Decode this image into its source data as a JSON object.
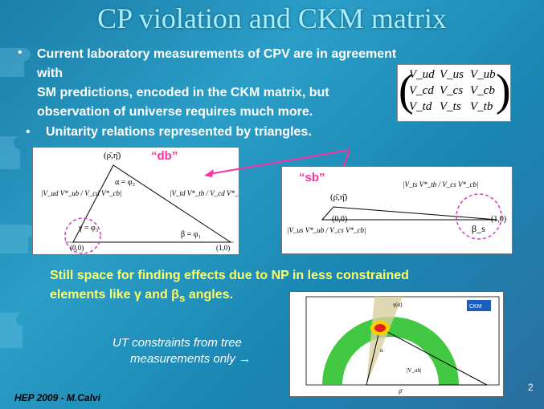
{
  "title": "CP violation and CKM matrix",
  "bullet1": {
    "line1": "Current  laboratory measurements of CPV are in agreement with",
    "line2": "SM predictions, encoded in the CKM matrix, but",
    "line3": "observation of universe requires much more."
  },
  "ckm": [
    "V_ud",
    "V_us",
    "V_ub",
    "V_cd",
    "V_cs",
    "V_cb",
    "V_td",
    "V_ts",
    "V_tb"
  ],
  "bullet2": "Unitarity relations represented by triangles.",
  "db_label": "“db”",
  "sb_label": "“sb”",
  "db_triangle": {
    "apex": "(ρ̄,η̄)",
    "alpha": "α = φ₂",
    "gamma": "γ = φ₃",
    "beta": "β = φ₁",
    "origin": "(0,0)",
    "end": "(1,0)"
  },
  "sb_triangle": {
    "apex": "(ρ̄,η̄)",
    "origin": "(0,0)",
    "end": "(1,0)",
    "beta_s": "β_s"
  },
  "still": {
    "line1": "Still space for finding effects due to NP in less constrained",
    "line2": "elements like γ and β",
    "line2_sub": "s",
    "line2_end": " angles."
  },
  "utc": {
    "line1": "UT constraints from tree",
    "line2": "measurements only →"
  },
  "plot": {
    "x_axis_label": "ρ̄",
    "gamma_label": "γ(α)",
    "alpha_label": "α",
    "vub_label": "|V_ub|",
    "legend": "CKM fitter"
  },
  "footer": "HEP 2009 - M.Calvi",
  "page_number": "2",
  "colors": {
    "accent": "#ff2fa0",
    "highlight": "#ffff66",
    "title": "#a8f0ff"
  }
}
